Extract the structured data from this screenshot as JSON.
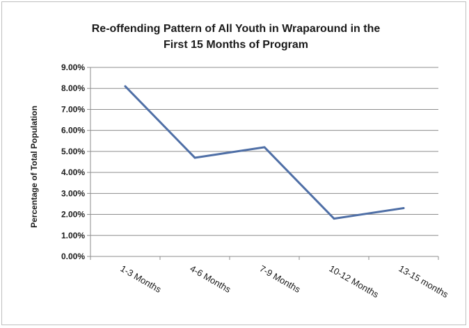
{
  "chart_data": {
    "type": "line",
    "title": [
      "Re-offending Pattern of All Youth in Wraparound in the",
      "First 15 Months of Program"
    ],
    "ylabel": "Percentage of Total Population",
    "xlabel": "",
    "categories": [
      "1-3 Months",
      "4-6 Months",
      "7-9 Months",
      "10-12 Months",
      "13-15 months"
    ],
    "series": [
      {
        "values": [
          8.1,
          4.7,
          5.2,
          1.8,
          2.3
        ],
        "color": "#4f6fa6"
      }
    ],
    "ylim": [
      0,
      9
    ],
    "yticks": [
      "0.00%",
      "1.00%",
      "2.00%",
      "3.00%",
      "4.00%",
      "5.00%",
      "6.00%",
      "7.00%",
      "8.00%",
      "9.00%"
    ],
    "grid": true,
    "legend": "none"
  }
}
